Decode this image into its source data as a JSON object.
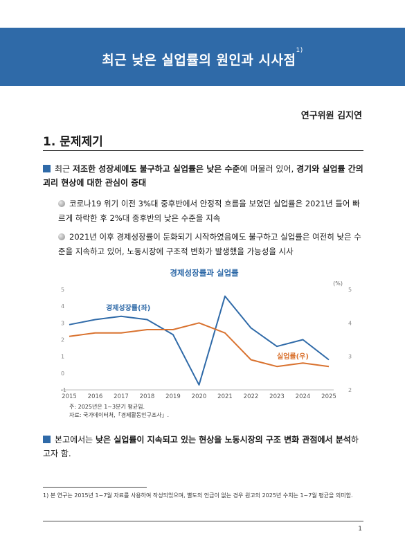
{
  "title": "최근 낮은 실업률의 원인과 시사점",
  "title_note": "1)",
  "author": "연구위원 김지연",
  "section": {
    "number": "1.",
    "heading": "문제제기"
  },
  "bullet1": {
    "p1": "최근 ",
    "b1": "저조한 성장세에도 불구하고 실업률은 낮은 수준",
    "p2": "에 머물러 있어, ",
    "b2": "경기와 실업률 간의 괴리 현상에 대한 관심이 증대"
  },
  "sub1": "코로나19 위기 이전 3%대 중후반에서 안정적 흐름을 보였던 실업률은 2021년 들어 빠르게 하락한 후 2%대 중후반의 낮은 수준을 지속",
  "sub2": "2021년 이후 경제성장률이 둔화되기 시작하였음에도 불구하고 실업률은 여전히 낮은 수준을 지속하고 있어, 노동시장에 구조적 변화가 발생했을 가능성을 시사",
  "bullet2": {
    "p1": "본고에서는 ",
    "b1": "낮은 실업률이 지속되고 있는 현상을 노동시장의 구조 변화 관점에서 분석",
    "p2": "하고자 함."
  },
  "notes": {
    "n1": "주: 2025년은 1~3분기 평균임.",
    "n2": "자료: 국가데이터처,「경제활동인구조사」."
  },
  "footnote": "1) 본 연구는 2015년 1~7월 자료를 사용하여 작성되었으며, 별도의 언급이 없는 경우 원고의 2025년 수치는 1~7월 평균을 의미함.",
  "page_number": "1",
  "colors": {
    "header": "#2f6aa8",
    "growth": "#2f6aa8",
    "unemployment": "#d9722f"
  },
  "chart_data": {
    "type": "line",
    "title": "경제성장률과 실업률",
    "x": [
      "2015",
      "2016",
      "2017",
      "2018",
      "2019",
      "2020",
      "2021",
      "2022",
      "2023",
      "2024",
      "2025"
    ],
    "series": [
      {
        "name": "경제성장률(좌)",
        "axis": "left",
        "values": [
          2.9,
          3.2,
          3.4,
          3.2,
          2.3,
          -0.7,
          4.6,
          2.7,
          1.6,
          2.0,
          0.8
        ]
      },
      {
        "name": "실업률(우)",
        "axis": "right",
        "values": [
          3.6,
          3.7,
          3.7,
          3.8,
          3.8,
          4.0,
          3.7,
          2.9,
          2.7,
          2.8,
          2.7
        ]
      }
    ],
    "left_ylim": [
      -1,
      5
    ],
    "right_ylim": [
      2,
      5
    ],
    "left_ticks": [
      "5",
      "4",
      "3",
      "2",
      "1",
      "0",
      "-1"
    ],
    "right_ticks": [
      "5",
      "4",
      "3",
      "2"
    ],
    "unit_label": "(%)",
    "grid": false
  }
}
